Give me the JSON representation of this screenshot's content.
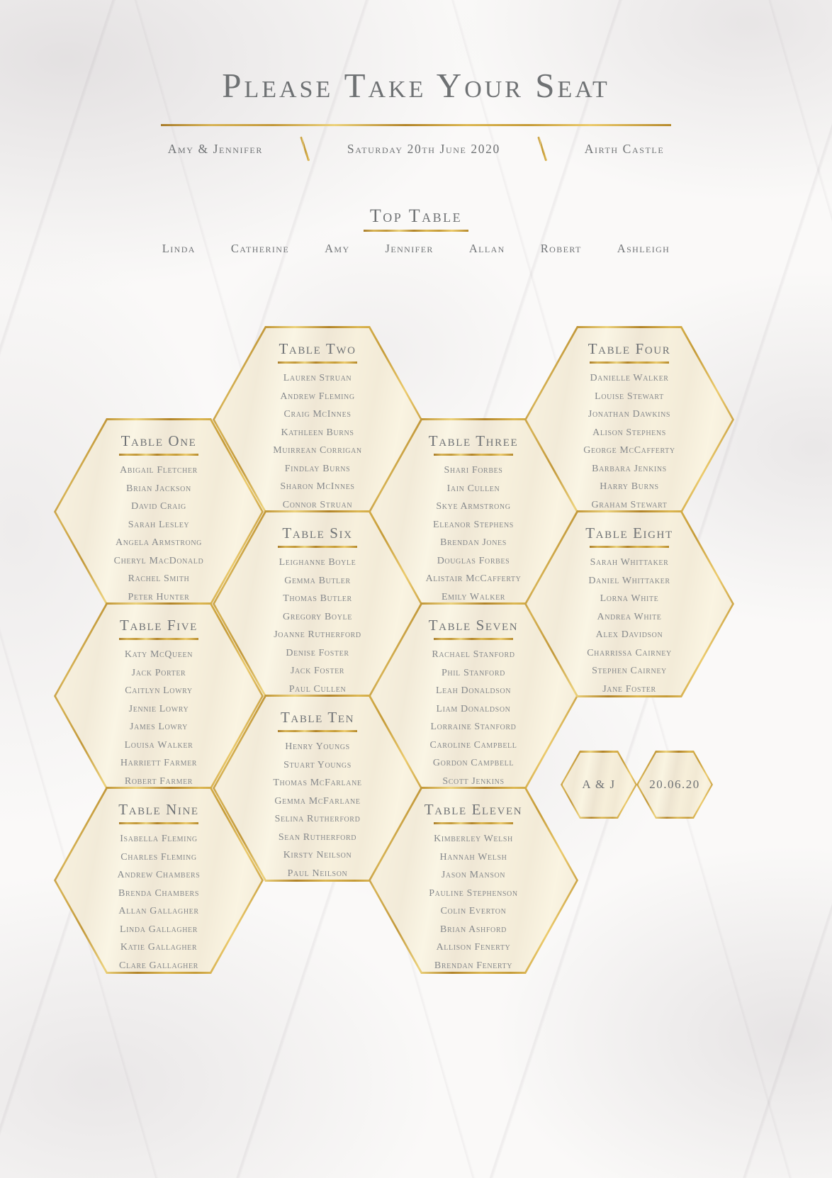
{
  "page": {
    "title": "Please Take Your Seat",
    "couple": "Amy & Jennifer",
    "date": "Saturday 20th June 2020",
    "venue": "Airth Castle"
  },
  "top_table": {
    "title": "Top Table",
    "seats": [
      "Linda",
      "Catherine",
      "Amy",
      "Jennifer",
      "Allan",
      "Robert",
      "Ashleigh"
    ]
  },
  "tables": [
    {
      "id": "one",
      "title": "Table One",
      "guests": [
        "Abigail Fletcher",
        "Brian Jackson",
        "David Craig",
        "Sarah Lesley",
        "Angela Armstrong",
        "Cheryl MacDonald",
        "Rachel Smith",
        "Peter Hunter"
      ]
    },
    {
      "id": "two",
      "title": "Table Two",
      "guests": [
        "Lauren Struan",
        "Andrew Fleming",
        "Craig McInnes",
        "Kathleen Burns",
        "Muirrean Corrigan",
        "Findlay Burns",
        "Sharon McInnes",
        "Connor Struan"
      ]
    },
    {
      "id": "three",
      "title": "Table Three",
      "guests": [
        "Shari Forbes",
        "Iain Cullen",
        "Skye Armstrong",
        "Eleanor Stephens",
        "Brendan Jones",
        "Douglas Forbes",
        "Alistair McCafferty",
        "Emily Walker"
      ]
    },
    {
      "id": "four",
      "title": "Table Four",
      "guests": [
        "Danielle Walker",
        "Louise Stewart",
        "Jonathan Dawkins",
        "Alison Stephens",
        "George McCafferty",
        "Barbara Jenkins",
        "Harry Burns",
        "Graham Stewart"
      ]
    },
    {
      "id": "five",
      "title": "Table Five",
      "guests": [
        "Katy McQueen",
        "Jack Porter",
        "Caitlyn Lowry",
        "Jennie Lowry",
        "James Lowry",
        "Louisa Walker",
        "Harriett Farmer",
        "Robert Farmer"
      ]
    },
    {
      "id": "six",
      "title": "Table Six",
      "guests": [
        "Leighanne Boyle",
        "Gemma Butler",
        "Thomas Butler",
        "Gregory Boyle",
        "Joanne Rutherford",
        "Denise Foster",
        "Jack Foster",
        "Paul Cullen"
      ]
    },
    {
      "id": "seven",
      "title": "Table Seven",
      "guests": [
        "Rachael Stanford",
        "Phil Stanford",
        "Leah Donaldson",
        "Liam Donaldson",
        "Lorraine Stanford",
        "Caroline Campbell",
        "Gordon Campbell",
        "Scott Jenkins"
      ]
    },
    {
      "id": "eight",
      "title": "Table Eight",
      "guests": [
        "Sarah Whittaker",
        "Daniel Whittaker",
        "Lorna White",
        "Andrea White",
        "Alex Davidson",
        "Charrissa Cairney",
        "Stephen Cairney",
        "Jane Foster"
      ]
    },
    {
      "id": "nine",
      "title": "Table Nine",
      "guests": [
        "Isabella Fleming",
        "Charles Fleming",
        "Andrew Chambers",
        "Brenda Chambers",
        "Allan Gallagher",
        "Linda Gallagher",
        "Katie Gallagher",
        "Clare Gallagher"
      ]
    },
    {
      "id": "ten",
      "title": "Table Ten",
      "guests": [
        "Henry Youngs",
        "Stuart Youngs",
        "Thomas McFarlane",
        "Gemma McFarlane",
        "Selina Rutherford",
        "Sean Rutherford",
        "Kirsty Neilson",
        "Paul Neilson"
      ]
    },
    {
      "id": "eleven",
      "title": "Table Eleven",
      "guests": [
        "Kimberley Welsh",
        "Hannah Welsh",
        "Jason Manson",
        "Pauline Stephenson",
        "Colin Everton",
        "Brian Ashford",
        "Allison Fenerty",
        "Brendan Fenerty"
      ]
    }
  ],
  "badges": [
    {
      "id": "initials",
      "label": "A & J"
    },
    {
      "id": "date",
      "label": "20.06.20"
    }
  ],
  "colors": {
    "gold": "#c59b38",
    "heading_gray": "#6e7173",
    "name_gray": "#85888b"
  }
}
